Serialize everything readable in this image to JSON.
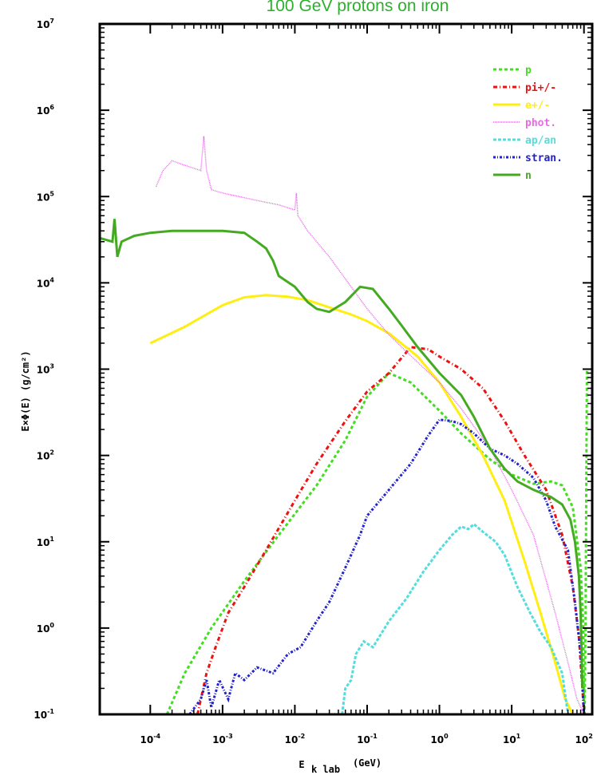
{
  "chart_data": {
    "type": "line",
    "title": "100 GeV protons on iron",
    "title_color": "#2db02d",
    "xlabel": "E",
    "xlabel_sub": "k lab",
    "xlabel_unit": "(GeV)",
    "ylabel": "E×Φ(E) (g/cm²)",
    "xscale": "log",
    "yscale": "log",
    "xlim": [
      2e-05,
      130
    ],
    "ylim": [
      0.1,
      10000000
    ],
    "grid": false,
    "legend_position": "top-right",
    "x_ticks": [
      {
        "value": 0.0001,
        "mant": "10",
        "exp": "-4"
      },
      {
        "value": 0.001,
        "mant": "10",
        "exp": "-3"
      },
      {
        "value": 0.01,
        "mant": "10",
        "exp": "-2"
      },
      {
        "value": 0.1,
        "mant": "10",
        "exp": "-1"
      },
      {
        "value": 1,
        "mant": "10",
        "exp": "0"
      },
      {
        "value": 10,
        "mant": "10",
        "exp": "1"
      },
      {
        "value": 100,
        "mant": "10",
        "exp": "2"
      }
    ],
    "y_ticks": [
      {
        "value": 0.1,
        "mant": "10",
        "exp": "-1"
      },
      {
        "value": 1,
        "mant": "10",
        "exp": "0"
      },
      {
        "value": 10,
        "mant": "10",
        "exp": "1"
      },
      {
        "value": 100,
        "mant": "10",
        "exp": "2"
      },
      {
        "value": 1000,
        "mant": "10",
        "exp": "3"
      },
      {
        "value": 10000,
        "mant": "10",
        "exp": "4"
      },
      {
        "value": 100000,
        "mant": "10",
        "exp": "5"
      },
      {
        "value": 1000000,
        "mant": "10",
        "exp": "6"
      },
      {
        "value": 10000000,
        "mant": "10",
        "exp": "7"
      }
    ],
    "series": [
      {
        "name": "p",
        "color": "#44dd22",
        "dash": "4,3",
        "width": 3,
        "x": [
          0.00017,
          0.0003,
          0.0007,
          0.002,
          0.006,
          0.02,
          0.05,
          0.1,
          0.2,
          0.4,
          1,
          2,
          5,
          10,
          20,
          35,
          50,
          70,
          90,
          98,
          100,
          102,
          105,
          110
        ],
        "y": [
          0.1,
          0.3,
          1,
          3.5,
          12,
          45,
          150,
          480,
          900,
          700,
          330,
          180,
          90,
          60,
          47,
          50,
          45,
          25,
          5,
          1,
          0.1,
          0.1,
          1,
          1000
        ]
      },
      {
        "name": "pi+/-",
        "color": "#ee1111",
        "dash": "5,3,1,3",
        "width": 3,
        "x": [
          0.00045,
          0.0006,
          0.0008,
          0.0012,
          0.002,
          0.004,
          0.01,
          0.02,
          0.05,
          0.1,
          0.2,
          0.4,
          0.7,
          1,
          2,
          4,
          8,
          15,
          30,
          50,
          70,
          85,
          95,
          100
        ],
        "y": [
          0.1,
          0.3,
          0.6,
          1.5,
          3,
          8,
          30,
          80,
          250,
          550,
          900,
          1800,
          1700,
          1400,
          1000,
          600,
          250,
          100,
          40,
          12,
          3,
          0.8,
          0.2,
          0.1
        ]
      },
      {
        "name": "e+/-",
        "color": "#ffee11",
        "dash": "",
        "width": 3,
        "x": [
          0.0001,
          0.0003,
          0.001,
          0.002,
          0.004,
          0.008,
          0.015,
          0.03,
          0.06,
          0.1,
          0.2,
          0.5,
          1,
          2,
          4,
          8,
          15,
          25,
          40,
          55,
          70,
          80
        ],
        "y": [
          2000,
          3100,
          5500,
          6800,
          7200,
          6900,
          6300,
          5200,
          4300,
          3600,
          2600,
          1400,
          700,
          280,
          100,
          30,
          6,
          1.5,
          0.4,
          0.15,
          0.1,
          0.1
        ]
      },
      {
        "name": "phot.",
        "color": "#ee66ee",
        "dash": "1,1",
        "width": 1.5,
        "x": [
          0.00012,
          0.00015,
          0.0002,
          0.0003,
          0.0005,
          0.00055,
          0.0006,
          0.0007,
          0.001,
          0.003,
          0.006,
          0.01,
          0.0105,
          0.011,
          0.015,
          0.03,
          0.06,
          0.1,
          0.2,
          0.5,
          1,
          2,
          5,
          10,
          20,
          40,
          60,
          80,
          100
        ],
        "y": [
          130000,
          200000,
          260000,
          230000,
          200000,
          500000,
          200000,
          120000,
          110000,
          90000,
          80000,
          70000,
          110000,
          60000,
          40000,
          20000,
          9000,
          5000,
          2500,
          1200,
          700,
          350,
          120,
          40,
          12,
          1.5,
          0.4,
          0.15,
          0.1
        ]
      },
      {
        "name": "ap/an",
        "color": "#55dddd",
        "dash": "4,2",
        "width": 3,
        "x": [
          0.045,
          0.05,
          0.06,
          0.07,
          0.09,
          0.12,
          0.2,
          0.35,
          0.6,
          1,
          1.5,
          2,
          2.5,
          3,
          4,
          6,
          8,
          12,
          18,
          25,
          35,
          50,
          60
        ],
        "y": [
          0.1,
          0.2,
          0.25,
          0.5,
          0.7,
          0.6,
          1.2,
          2.2,
          4.5,
          8,
          12,
          15,
          14,
          16,
          13,
          10,
          7,
          3,
          1.5,
          0.9,
          0.6,
          0.3,
          0.1
        ]
      },
      {
        "name": "stran.",
        "color": "#2222cc",
        "dash": "3,2,1,2",
        "width": 3,
        "x": [
          0.00035,
          0.0005,
          0.0006,
          0.0007,
          0.0009,
          0.0012,
          0.0015,
          0.002,
          0.003,
          0.005,
          0.008,
          0.012,
          0.02,
          0.03,
          0.05,
          0.08,
          0.1,
          0.2,
          0.4,
          0.7,
          1,
          1.5,
          2,
          3,
          5,
          8,
          12,
          20,
          30,
          40,
          60,
          75,
          90,
          100
        ],
        "y": [
          0.1,
          0.15,
          0.25,
          0.12,
          0.25,
          0.15,
          0.3,
          0.25,
          0.35,
          0.3,
          0.5,
          0.6,
          1.2,
          2,
          5,
          12,
          20,
          40,
          80,
          170,
          260,
          250,
          230,
          180,
          120,
          100,
          80,
          55,
          30,
          15,
          8,
          2,
          0.5,
          0.1
        ]
      },
      {
        "name": "n",
        "color": "#44aa22",
        "dash": "",
        "width": 3,
        "x": [
          2e-05,
          3e-05,
          3.2e-05,
          3.5e-05,
          4e-05,
          6e-05,
          0.0001,
          0.0002,
          0.0005,
          0.001,
          0.002,
          0.003,
          0.004,
          0.005,
          0.006,
          0.01,
          0.015,
          0.02,
          0.03,
          0.05,
          0.08,
          0.12,
          0.2,
          0.3,
          0.5,
          1,
          2,
          3,
          5,
          8,
          12,
          20,
          35,
          50,
          65,
          75,
          85,
          90,
          95
        ],
        "y": [
          33000,
          30000,
          55000,
          20000,
          30000,
          35000,
          38000,
          40000,
          40000,
          40000,
          38000,
          30000,
          25000,
          18000,
          12000,
          9000,
          6000,
          5000,
          4600,
          6000,
          9000,
          8500,
          5000,
          3200,
          1800,
          900,
          500,
          280,
          120,
          70,
          50,
          40,
          33,
          27,
          18,
          10,
          4,
          1.5,
          0.2
        ]
      }
    ]
  }
}
